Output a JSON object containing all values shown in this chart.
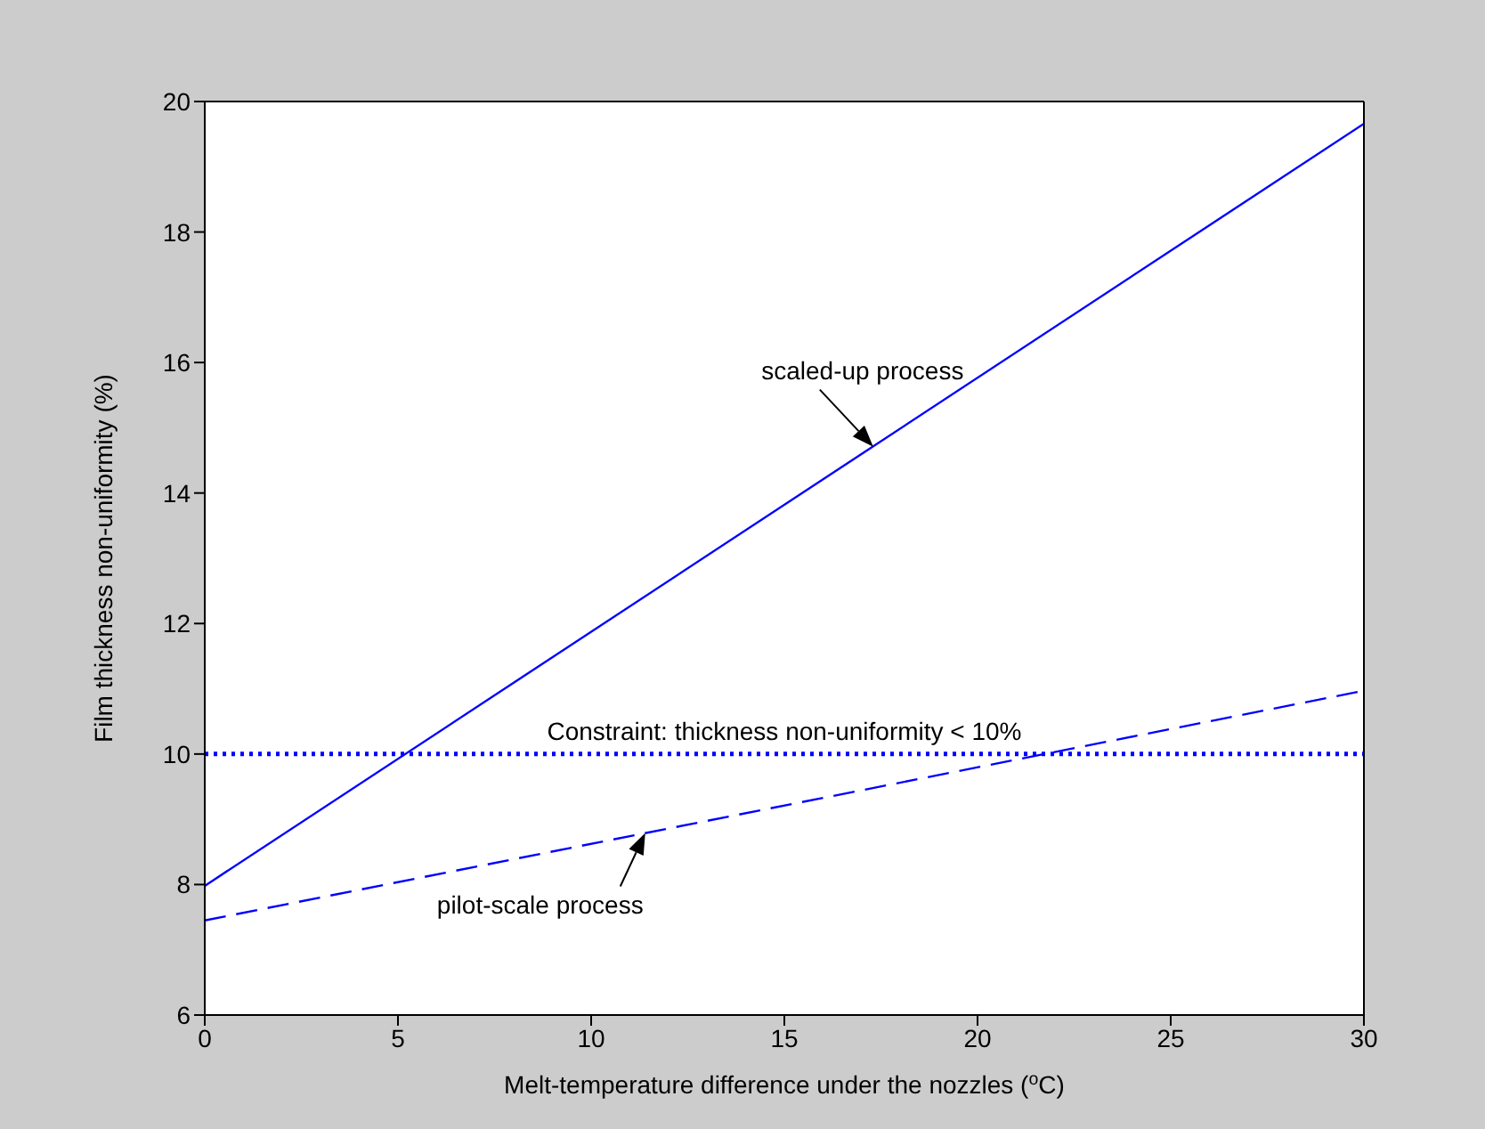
{
  "chart_data": {
    "type": "line",
    "xlabel": "Melt-temperature difference under the nozzles ($^{o}$C)",
    "ylabel": "Film thickness non-uniformity (%)",
    "xlim": [
      0,
      30
    ],
    "xticks": [
      0,
      5,
      10,
      15,
      20,
      25,
      30
    ],
    "ylim": [
      6,
      20
    ],
    "yticks": [
      6,
      8,
      10,
      12,
      14,
      16,
      18,
      20
    ],
    "marker": "none",
    "x": [
      0,
      30
    ],
    "series": [
      {
        "color": "#0000ff",
        "line_style": "solid",
        "values": [
          7.98,
          19.66
        ]
      },
      {
        "color": "#0000ff",
        "line_style": "dashed",
        "values": [
          7.45,
          10.97
        ]
      }
    ],
    "ref_lines": [
      {
        "axis": "y",
        "value": 10,
        "label": "Constraint: thickness non-uniformity < 10%",
        "color": "#0000ff",
        "line_style": "dotted"
      }
    ],
    "annotations": [
      {
        "text": "scaled-up process",
        "x": 17.3,
        "y": 14.71
      },
      {
        "text": "pilot-scale process",
        "x": 11.4,
        "y": 8.79
      }
    ]
  }
}
